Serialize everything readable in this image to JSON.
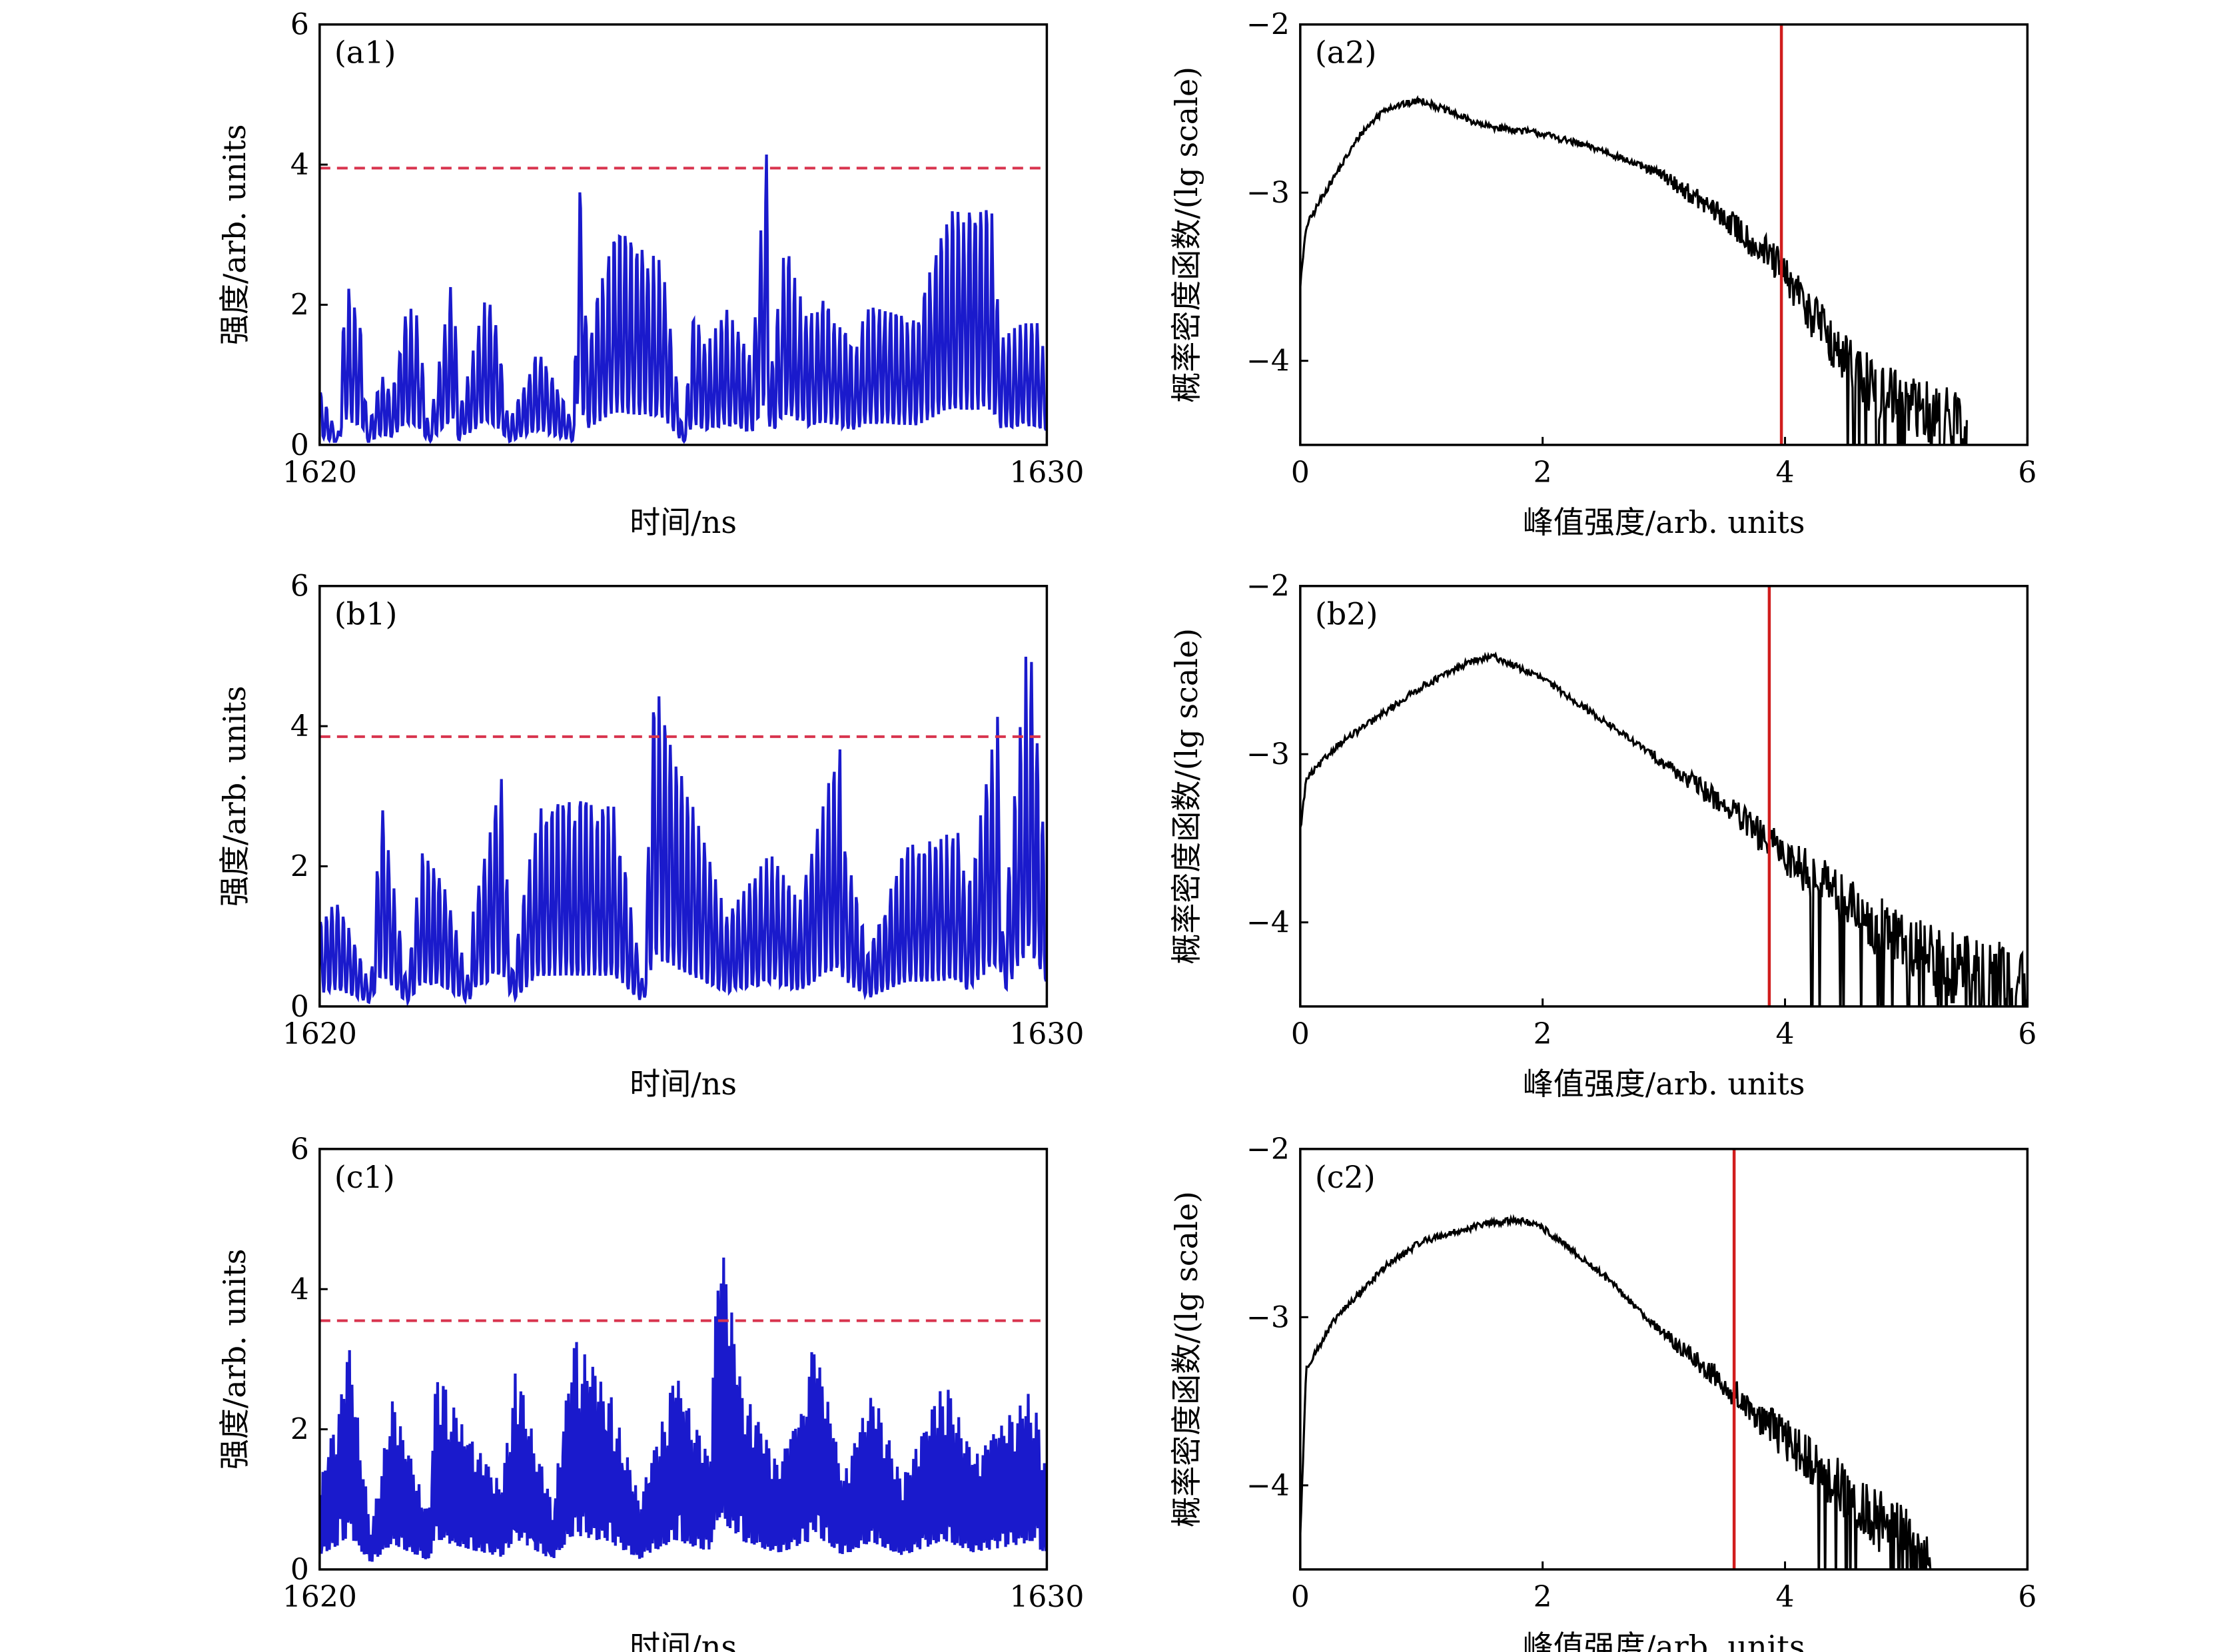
{
  "chart_data": [
    {
      "type": "line",
      "panel": "(a1)",
      "xlabel": "时间/ns",
      "ylabel": "强度/arb. units",
      "xlim": [
        1620,
        1630
      ],
      "ylim": [
        0,
        6
      ],
      "x_ticks": [
        "1620",
        "1630"
      ],
      "y_ticks": [
        "0",
        "2",
        "4",
        "6"
      ],
      "threshold": 3.95,
      "line_color": "#1a1acc",
      "threshold_color": "#d8344e",
      "series": [
        {
          "x": [
            1620,
            1620.25,
            1620.36,
            1620.6,
            1620.65,
            1620.85,
            1621.0,
            1621.2,
            1621.35,
            1621.5,
            1621.85,
            1621.9,
            1622.3,
            1622.45,
            1622.6,
            1623.0,
            1623.5,
            1623.55,
            1623.68,
            1624.05,
            1624.72,
            1625.0,
            1625.15,
            1625.3,
            1625.6,
            1625.95,
            1626.14,
            1626.2,
            1626.4,
            1626.7,
            1626.95,
            1627.35,
            1627.5,
            1627.8,
            1628.2,
            1628.55,
            1628.6,
            1629.25,
            1629.35,
            1629.85,
            1630
          ],
          "y": [
            0.85,
            0.1,
            2.4,
            1.55,
            0.2,
            1.0,
            0.75,
            2.0,
            1.85,
            0.2,
            2.6,
            0.4,
            2.2,
            1.6,
            0.3,
            1.4,
            0.3,
            4.35,
            1.5,
            3.1,
            2.6,
            0.15,
            2.0,
            1.4,
            1.95,
            1.2,
            4.4,
            1.0,
            2.9,
            1.8,
            2.1,
            1.4,
            2.0,
            2.0,
            1.8,
            3.05,
            3.35,
            3.35,
            1.6,
            1.8,
            1.25
          ]
        }
      ]
    },
    {
      "type": "line",
      "panel": "(a2)",
      "xlabel": "峰值强度/arb. units",
      "ylabel": "概率密度函数/(lg scale)",
      "xlim": [
        0,
        6
      ],
      "ylim": [
        -4.5,
        -2
      ],
      "x_ticks": [
        "0",
        "2",
        "4",
        "6"
      ],
      "y_ticks": [
        "−2",
        "−3",
        "−4"
      ],
      "threshold": 3.97,
      "line_color": "#000000",
      "threshold_color": "#d11d1d",
      "series": [
        {
          "x": [
            0,
            0.05,
            0.2,
            0.5,
            0.7,
            1.0,
            1.5,
            2.0,
            2.5,
            3.0,
            3.5,
            3.9,
            4.2,
            4.5,
            4.8,
            5.2,
            5.5
          ],
          "y": [
            -3.55,
            -3.2,
            -3.0,
            -2.65,
            -2.5,
            -2.45,
            -2.6,
            -2.65,
            -2.75,
            -2.9,
            -3.15,
            -3.4,
            -3.7,
            -4.0,
            -4.2,
            -4.35,
            -4.4
          ]
        }
      ]
    },
    {
      "type": "line",
      "panel": "(b1)",
      "xlabel": "时间/ns",
      "ylabel": "强度/arb. units",
      "xlim": [
        1620,
        1630
      ],
      "ylim": [
        0,
        6
      ],
      "x_ticks": [
        "1620",
        "1630"
      ],
      "y_ticks": [
        "0",
        "2",
        "4",
        "6"
      ],
      "threshold": 3.85,
      "line_color": "#1a1acc",
      "threshold_color": "#d8344e",
      "series": [
        {
          "x": [
            1620,
            1620.25,
            1620.7,
            1620.85,
            1621.2,
            1621.4,
            1621.7,
            1622.05,
            1622.1,
            1622.5,
            1622.65,
            1623.0,
            1623.45,
            1624.05,
            1624.45,
            1624.6,
            1625.3,
            1625.6,
            1626.2,
            1626.6,
            1627.15,
            1627.2,
            1627.55,
            1628.05,
            1628.8,
            1628.9,
            1629.35,
            1629.4,
            1629.75,
            1630
          ],
          "y": [
            1.25,
            1.6,
            0.3,
            3.05,
            0.3,
            2.2,
            1.8,
            0.4,
            1.3,
            3.25,
            0.5,
            2.9,
            2.95,
            2.9,
            0.3,
            4.65,
            2.3,
            1.3,
            2.2,
            1.5,
            3.85,
            2.5,
            0.8,
            2.3,
            2.5,
            1.6,
            4.3,
            1.0,
            5.5,
            1.85
          ]
        }
      ]
    },
    {
      "type": "line",
      "panel": "(b2)",
      "xlabel": "峰值强度/arb. units",
      "ylabel": "概率密度函数/(lg scale)",
      "xlim": [
        0,
        6
      ],
      "ylim": [
        -4.5,
        -2
      ],
      "x_ticks": [
        "0",
        "2",
        "4",
        "6"
      ],
      "y_ticks": [
        "−2",
        "−3",
        "−4"
      ],
      "threshold": 3.87,
      "line_color": "#000000",
      "threshold_color": "#d11d1d",
      "series": [
        {
          "x": [
            0,
            0.05,
            0.3,
            0.7,
            1.0,
            1.4,
            1.6,
            2.0,
            2.5,
            3.0,
            3.5,
            3.9,
            4.2,
            4.6,
            5.0,
            5.4,
            5.8,
            6.0
          ],
          "y": [
            -3.45,
            -3.15,
            -2.95,
            -2.75,
            -2.6,
            -2.45,
            -2.42,
            -2.55,
            -2.8,
            -3.05,
            -3.3,
            -3.55,
            -3.7,
            -3.95,
            -4.15,
            -4.3,
            -4.4,
            -4.45
          ]
        }
      ]
    },
    {
      "type": "line",
      "panel": "(c1)",
      "xlabel": "时间/ns",
      "ylabel": "强度/arb. units",
      "xlim": [
        1620,
        1630
      ],
      "ylim": [
        0,
        6
      ],
      "x_ticks": [
        "1620",
        "1630"
      ],
      "y_ticks": [
        "0",
        "2",
        "4",
        "6"
      ],
      "threshold": 3.55,
      "line_color": "#1a1acc",
      "threshold_color": "#d8344e",
      "series": [
        {
          "x": [
            1620,
            1620.3,
            1620.4,
            1620.7,
            1621.0,
            1621.5,
            1621.6,
            1622.0,
            1622.5,
            1622.7,
            1623.2,
            1623.5,
            1624.0,
            1624.4,
            1624.9,
            1625.35,
            1625.5,
            1625.8,
            1626.3,
            1626.7,
            1626.8,
            1627.2,
            1627.6,
            1628.0,
            1628.6,
            1629.0,
            1629.8,
            1630
          ],
          "y": [
            1.2,
            2.5,
            3.25,
            0.6,
            2.4,
            0.8,
            2.85,
            2.0,
            1.2,
            2.9,
            0.9,
            3.3,
            2.5,
            1.0,
            2.8,
            1.6,
            4.95,
            2.65,
            1.5,
            2.5,
            3.4,
            1.3,
            2.6,
            1.3,
            2.7,
            1.6,
            2.6,
            1.3
          ]
        }
      ]
    },
    {
      "type": "line",
      "panel": "(c2)",
      "xlabel": "峰值强度/arb. units",
      "ylabel": "概率密度函数/(lg scale)",
      "xlim": [
        0,
        6
      ],
      "ylim": [
        -4.5,
        -2
      ],
      "x_ticks": [
        "0",
        "2",
        "4",
        "6"
      ],
      "y_ticks": [
        "−2",
        "−3",
        "−4"
      ],
      "threshold": 3.58,
      "line_color": "#000000",
      "threshold_color": "#d11d1d",
      "series": [
        {
          "x": [
            0,
            0.05,
            0.3,
            0.7,
            1.0,
            1.5,
            1.8,
            2.0,
            2.5,
            3.0,
            3.5,
            3.8,
            4.2,
            4.6,
            5.0,
            5.2
          ],
          "y": [
            -4.3,
            -3.3,
            -3.0,
            -2.7,
            -2.55,
            -2.45,
            -2.42,
            -2.47,
            -2.75,
            -3.1,
            -3.4,
            -3.6,
            -3.85,
            -4.1,
            -4.35,
            -4.4
          ]
        }
      ]
    }
  ]
}
